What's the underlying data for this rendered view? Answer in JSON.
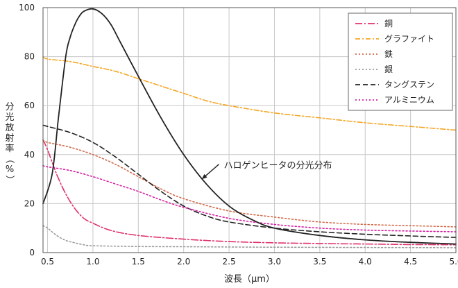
{
  "chart_data": {
    "type": "line",
    "title": "",
    "xlabel": "波長（μm）",
    "ylabel_chars": [
      "分",
      "光",
      "放",
      "射",
      "率",
      "（",
      "%",
      "）"
    ],
    "xlim": [
      0.45,
      5.0
    ],
    "ylim": [
      0,
      100
    ],
    "x_ticks": [
      0.5,
      1.0,
      1.5,
      2.0,
      2.5,
      3.0,
      3.5,
      4.0,
      4.5,
      5.0
    ],
    "x_tick_labels": [
      "0.5",
      "1.0",
      "1.5",
      "2.0",
      "2.5",
      "3.0",
      "3.5",
      "4.0",
      "4.5",
      "5.0"
    ],
    "y_ticks": [
      0,
      20,
      40,
      60,
      80,
      100
    ],
    "y_tick_labels": [
      "0",
      "20",
      "40",
      "60",
      "80",
      "100"
    ],
    "grid": true,
    "legend_position": "top-right",
    "series": [
      {
        "name": "銅",
        "color": "#e0306a",
        "dash": "10 3 2 3",
        "x": [
          0.45,
          0.5,
          0.6,
          0.7,
          0.8,
          0.9,
          1.0,
          1.2,
          1.5,
          2.0,
          2.5,
          3.0,
          3.5,
          4.0,
          4.5,
          5.0
        ],
        "y": [
          46,
          42,
          32,
          24,
          18,
          14,
          12,
          9,
          7,
          5.5,
          4.5,
          4,
          3.7,
          3.5,
          3.3,
          3.2
        ]
      },
      {
        "name": "グラファイト",
        "color": "#f5a623",
        "dash": "7 3 2 3",
        "x": [
          0.45,
          0.5,
          0.75,
          1.0,
          1.25,
          1.5,
          1.75,
          2.0,
          2.25,
          2.5,
          3.0,
          3.5,
          4.0,
          4.5,
          5.0
        ],
        "y": [
          80,
          79,
          78,
          76,
          74,
          71,
          68,
          65,
          62,
          60,
          57,
          55,
          53,
          51.5,
          50
        ]
      },
      {
        "name": "鉄",
        "color": "#d36a4a",
        "dash": "2 3",
        "x": [
          0.45,
          0.5,
          0.75,
          1.0,
          1.25,
          1.5,
          1.75,
          2.0,
          2.5,
          3.0,
          3.5,
          4.0,
          4.5,
          5.0
        ],
        "y": [
          46,
          45,
          43,
          40,
          36,
          31,
          26,
          22,
          17,
          14.5,
          12.5,
          11.5,
          11,
          10.5
        ]
      },
      {
        "name": "銀",
        "color": "#9a9a9a",
        "dash": "2 3",
        "x": [
          0.45,
          0.5,
          0.6,
          0.7,
          0.8,
          0.9,
          1.0,
          1.5,
          2.0,
          3.0,
          4.0,
          5.0
        ],
        "y": [
          11,
          10,
          7,
          5,
          4,
          3.2,
          2.8,
          2.5,
          2.4,
          2.2,
          2.1,
          2.0
        ]
      },
      {
        "name": "タングステン",
        "color": "#222222",
        "dash": "7 4",
        "x": [
          0.45,
          0.5,
          0.75,
          1.0,
          1.25,
          1.5,
          1.75,
          2.0,
          2.25,
          2.5,
          3.0,
          3.5,
          4.0,
          4.5,
          5.0
        ],
        "y": [
          52,
          51.5,
          49,
          45,
          39,
          32,
          25,
          19,
          15,
          12.5,
          10,
          8.5,
          7.5,
          6.8,
          6.2
        ]
      },
      {
        "name": "アルミニウム",
        "color": "#d61fa0",
        "dash": "2 3",
        "x": [
          0.45,
          0.5,
          0.75,
          1.0,
          1.25,
          1.5,
          1.75,
          2.0,
          2.5,
          3.0,
          3.5,
          4.0,
          4.5,
          5.0
        ],
        "y": [
          35.5,
          35,
          33.5,
          31,
          28,
          25,
          21.5,
          18.5,
          14,
          11.5,
          10,
          9.2,
          8.8,
          8.5
        ]
      },
      {
        "name": "",
        "color": "#222222",
        "dash": "",
        "width": 1.8,
        "x": [
          0.45,
          0.55,
          0.62,
          0.7,
          0.75,
          0.8,
          0.85,
          0.9,
          1.0,
          1.1,
          1.2,
          1.3,
          1.5,
          1.75,
          2.0,
          2.25,
          2.5,
          2.75,
          3.0,
          3.5,
          4.0,
          4.5,
          5.0
        ],
        "y": [
          20,
          32,
          55,
          80,
          88,
          93,
          96.5,
          98.5,
          99.5,
          97.5,
          93,
          86,
          72,
          55,
          40,
          28,
          19,
          13.5,
          10,
          7,
          5.2,
          4.2,
          3.5
        ]
      }
    ],
    "annotations": [
      {
        "text": "ハロゲンヒータの分光分布",
        "x": 2.45,
        "y": 35.5,
        "arrow_to": [
          2.2,
          30
        ]
      }
    ]
  }
}
